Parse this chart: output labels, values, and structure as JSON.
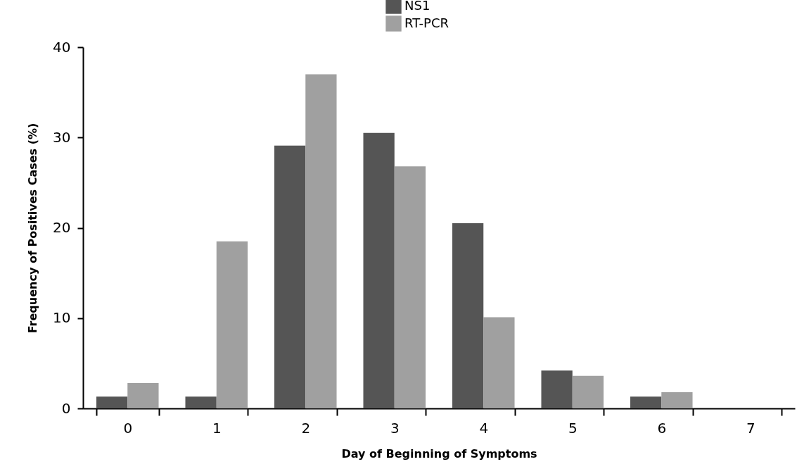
{
  "chart_data": {
    "type": "bar",
    "xlabel": "Day of Beginning of Symptoms",
    "ylabel": "Frequency of Positives Cases (%)",
    "categories": [
      "0",
      "1",
      "2",
      "3",
      "4",
      "5",
      "6",
      "7"
    ],
    "series": [
      {
        "name": "NS1",
        "color": "#555555",
        "values": [
          1.3,
          1.3,
          29.1,
          30.5,
          20.5,
          4.2,
          1.3,
          0
        ]
      },
      {
        "name": "RT-PCR",
        "color": "#a0a0a0",
        "values": [
          2.8,
          18.5,
          37.0,
          26.8,
          10.1,
          3.6,
          1.8,
          0
        ]
      }
    ],
    "ylim": [
      0,
      40
    ],
    "yticks": [
      0,
      10,
      20,
      30,
      40
    ],
    "grid": false,
    "legend": "top"
  }
}
